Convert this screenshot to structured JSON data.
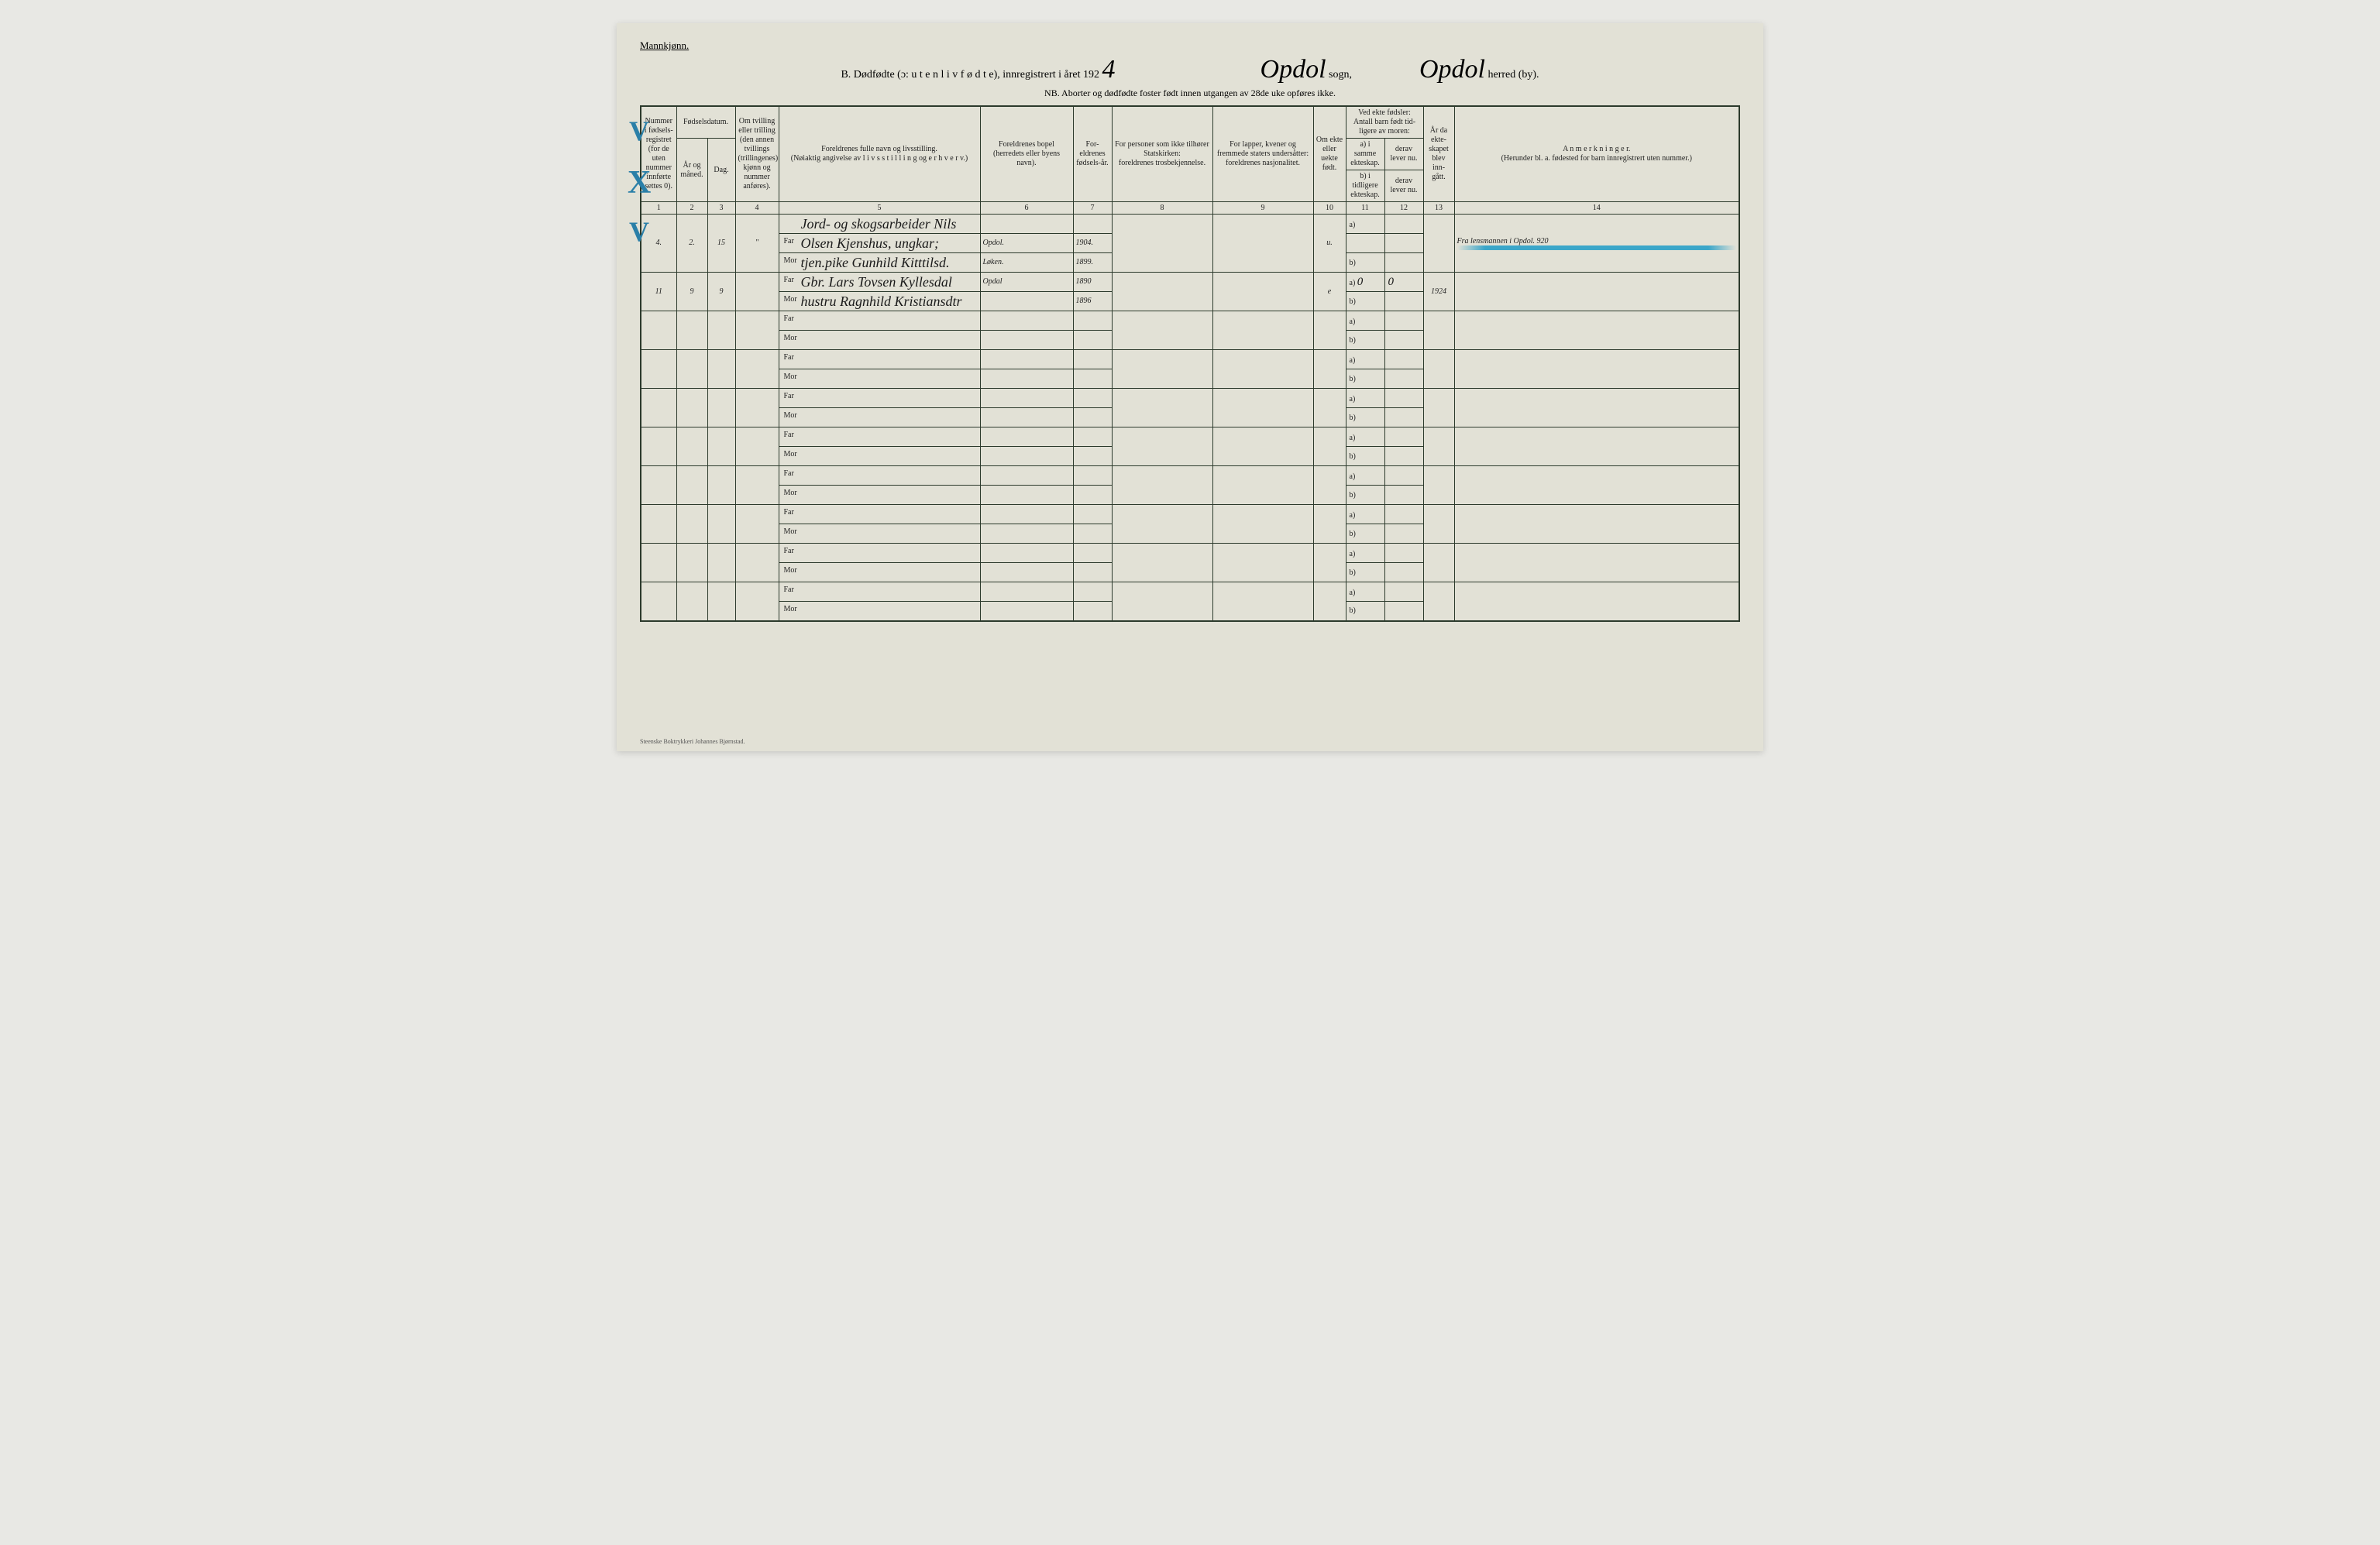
{
  "header": {
    "gender": "Mannkjønn.",
    "title_prefix": "B.  Dødfødte (ɔ:  u t e n  l i v  f ø d t e),  innregistrert i året 192",
    "year_digit": "4",
    "sogn_label": "sogn,",
    "sogn_value": "Opdol",
    "herred_label": "herred (by).",
    "herred_value": "Opdol",
    "nb_line": "NB.  Aborter og dødfødte foster født innen utgangen av 28de uke opføres ikke."
  },
  "columns": {
    "1": "Nummer i fødsels-registret (for de uten nummer innførte settes 0).",
    "2_group": "Fødselsdatum.",
    "2": "År og måned.",
    "3": "Dag.",
    "4": "Om tvilling eller trilling (den annen tvillings (trillingenes) kjønn og nummer anføres).",
    "5_top": "Foreldrenes fulle navn og livsstilling.",
    "5_bot": "(Nøiaktig angivelse av  l i v s s t i l l i n g  og  e r h v e r v.)",
    "6_top": "Foreldrenes bopel",
    "6_bot": "(herredets eller byens navn).",
    "7": "For-eldrenes fødsels-år.",
    "8_top": "For personer som ikke tilhører Statskirken:",
    "8_bot": "foreldrenes trosbekjennelse.",
    "9_top": "For lapper, kvener og fremmede staters undersåtter:",
    "9_bot": "foreldrenes nasjonalitet.",
    "10": "Om ekte eller uekte født.",
    "11_top": "Ved ekte fødsler: Antall barn født tid-ligere av moren:",
    "11": "a) i samme ekteskap.",
    "11b": "b) i tidligere ekteskap.",
    "12": "derav lever nu.",
    "12b": "derav lever nu.",
    "13": "År da ekte-skapet blev inn-gått.",
    "14_top": "A n m e r k n i n g e r.",
    "14_bot": "(Herunder bl. a. fødested for barn innregistrert uten nummer.)"
  },
  "far_label": "Far",
  "mor_label": "Mor",
  "ab_a": "a)",
  "ab_b": "b)",
  "rows": [
    {
      "mark": "X",
      "num": "4.",
      "year_month": "2.",
      "day": "15",
      "twin": "\"",
      "far_top": "Jord- og skogsarbeider Nils",
      "far": "Olsen Kjenshus, ungkar;",
      "mor": "tjen.pike Gunhild Kitttilsd.",
      "bopel_far": "Opdol.",
      "bopel_mor": "Løken.",
      "year_far": "1904.",
      "year_mor": "1899.",
      "ekte": "u.",
      "remark": "Fra lensmannen i Opdol.   920",
      "blue_line": true
    },
    {
      "mark": "V",
      "num": "11",
      "year_month": "9",
      "day": "9",
      "twin": "",
      "far": "Gbr. Lars Tovsen Kyllesdal",
      "mor": "hustru Ragnhild Kristiansdtr",
      "bopel_far": "Opdal",
      "bopel_mor": "",
      "year_far": "1890",
      "year_mor": "1896",
      "ekte": "e",
      "c11a": "0",
      "c12a": "0",
      "c13": "1924",
      "remark": ""
    }
  ],
  "colnums": [
    "1",
    "2",
    "3",
    "4",
    "5",
    "6",
    "7",
    "8",
    "9",
    "10",
    "11",
    "12",
    "13",
    "14"
  ],
  "footer": "Steenske Boktrykkeri Johannes Bjørnstad."
}
